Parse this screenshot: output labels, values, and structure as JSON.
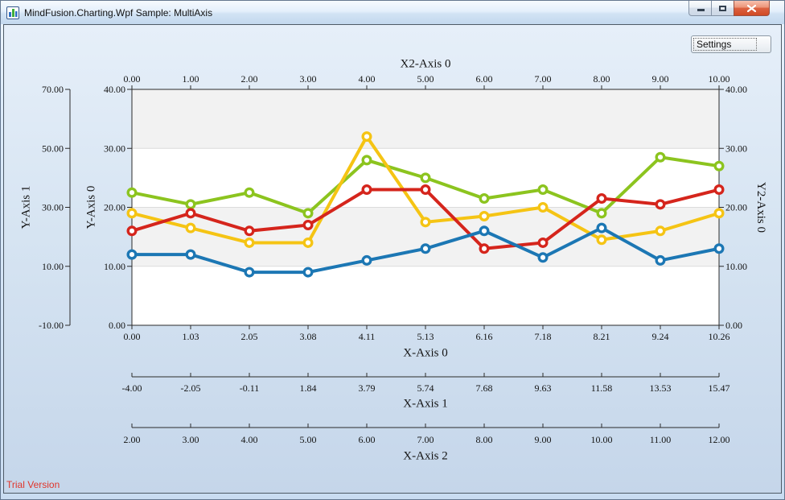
{
  "window": {
    "title": "MindFusion.Charting.Wpf Sample: MultiAxis"
  },
  "settings": {
    "label": "Settings"
  },
  "footer": {
    "trial_text": "Trial Version",
    "trial_color": "#e0352b"
  },
  "icons": {
    "app_icon": "bar-chart-icon",
    "minimize": "minimize-icon",
    "maximize": "maximize-icon",
    "close": "close-icon",
    "combo_arrow": "chevron-down-icon"
  },
  "chart_data": {
    "type": "line",
    "plot": {
      "background": "#ffffff",
      "stripe_color": "#f2f2f2",
      "gridline_color": "#dcdcdc",
      "axis_line_color": "#2b2b2b",
      "stripes_value_bands": [
        [
          30,
          40
        ],
        [
          10,
          20
        ]
      ],
      "gridline_values": [
        10,
        20,
        30
      ]
    },
    "axes": {
      "x2_axis_0": {
        "title": "X2-Axis 0",
        "labels": [
          "0.00",
          "1.00",
          "2.00",
          "3.00",
          "4.00",
          "5.00",
          "6.00",
          "7.00",
          "8.00",
          "9.00",
          "10.00"
        ]
      },
      "x_axis_0": {
        "title": "X-Axis 0",
        "labels": [
          "0.00",
          "1.03",
          "2.05",
          "3.08",
          "4.11",
          "5.13",
          "6.16",
          "7.18",
          "8.21",
          "9.24",
          "10.26"
        ]
      },
      "x_axis_1": {
        "title": "X-Axis 1",
        "labels": [
          "-4.00",
          "-2.05",
          "-0.11",
          "1.84",
          "3.79",
          "5.74",
          "7.68",
          "9.63",
          "11.58",
          "13.53",
          "15.47"
        ]
      },
      "x_axis_2": {
        "title": "X-Axis 2",
        "labels": [
          "2.00",
          "3.00",
          "4.00",
          "5.00",
          "6.00",
          "7.00",
          "8.00",
          "9.00",
          "10.00",
          "11.00",
          "12.00"
        ]
      },
      "y_axis_1": {
        "title": "Y-Axis 1",
        "labels": [
          "70.00",
          "50.00",
          "30.00",
          "10.00",
          "-10.00"
        ],
        "range": [
          -10,
          70
        ]
      },
      "y_axis_0": {
        "title": "Y-Axis 0",
        "labels": [
          "40.00",
          "30.00",
          "20.00",
          "10.00",
          "0.00"
        ],
        "range": [
          0,
          40
        ]
      },
      "y2_axis_0": {
        "title": "Y2-Axis 0",
        "labels": [
          "40.00",
          "30.00",
          "20.00",
          "10.00",
          "0.00"
        ],
        "range": [
          0,
          40
        ]
      }
    },
    "series": [
      {
        "name": "series-green",
        "color": "#8cc41f",
        "values": [
          22.5,
          20.5,
          22.5,
          19,
          28,
          25,
          21.5,
          23,
          19,
          28.5,
          27
        ]
      },
      {
        "name": "series-yellow",
        "color": "#f5c414",
        "values": [
          19,
          16.5,
          14,
          14,
          32,
          17.5,
          18.5,
          20,
          14.5,
          16,
          19
        ]
      },
      {
        "name": "series-red",
        "color": "#d5251c",
        "values": [
          16,
          19,
          16,
          17,
          23,
          23,
          13,
          14,
          21.5,
          20.5,
          23
        ]
      },
      {
        "name": "series-blue",
        "color": "#1c77b4",
        "values": [
          12,
          12,
          9,
          9,
          11,
          13,
          16,
          11.5,
          16.5,
          11,
          13
        ]
      }
    ]
  }
}
